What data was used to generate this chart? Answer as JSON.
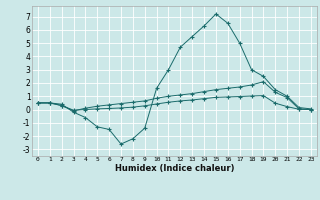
{
  "xlabel": "Humidex (Indice chaleur)",
  "ylabel": "",
  "xlim": [
    -0.5,
    23.5
  ],
  "ylim": [
    -3.5,
    7.8
  ],
  "yticks": [
    -3,
    -2,
    -1,
    0,
    1,
    2,
    3,
    4,
    5,
    6,
    7
  ],
  "xticks": [
    0,
    1,
    2,
    3,
    4,
    5,
    6,
    7,
    8,
    9,
    10,
    11,
    12,
    13,
    14,
    15,
    16,
    17,
    18,
    19,
    20,
    21,
    22,
    23
  ],
  "background_color": "#cce8e8",
  "grid_color": "#ffffff",
  "line_color": "#1a6b6b",
  "line1_x": [
    0,
    1,
    2,
    3,
    4,
    5,
    6,
    7,
    8,
    9,
    10,
    11,
    12,
    13,
    14,
    15,
    16,
    17,
    18,
    19,
    20,
    21,
    22,
    23
  ],
  "line1_y": [
    0.5,
    0.5,
    0.4,
    -0.2,
    -0.6,
    -1.3,
    -1.5,
    -2.6,
    -2.2,
    -1.4,
    1.6,
    3.0,
    4.7,
    5.5,
    6.3,
    7.2,
    6.5,
    5.0,
    3.0,
    2.5,
    1.5,
    1.0,
    0.15,
    0.05
  ],
  "line2_x": [
    0,
    1,
    2,
    3,
    4,
    5,
    6,
    7,
    8,
    9,
    10,
    11,
    12,
    13,
    14,
    15,
    16,
    17,
    18,
    19,
    20,
    21,
    22,
    23
  ],
  "line2_y": [
    0.5,
    0.5,
    0.3,
    -0.1,
    0.1,
    0.25,
    0.35,
    0.45,
    0.55,
    0.65,
    0.85,
    1.0,
    1.1,
    1.2,
    1.35,
    1.5,
    1.6,
    1.7,
    1.85,
    2.1,
    1.3,
    0.9,
    0.05,
    0.0
  ],
  "line3_x": [
    0,
    1,
    2,
    3,
    4,
    5,
    6,
    7,
    8,
    9,
    10,
    11,
    12,
    13,
    14,
    15,
    16,
    17,
    18,
    19,
    20,
    21,
    22,
    23
  ],
  "line3_y": [
    0.5,
    0.5,
    0.3,
    -0.05,
    0.0,
    0.05,
    0.08,
    0.12,
    0.18,
    0.28,
    0.42,
    0.55,
    0.65,
    0.72,
    0.82,
    0.92,
    0.95,
    0.98,
    1.02,
    1.05,
    0.48,
    0.22,
    0.02,
    0.0
  ]
}
